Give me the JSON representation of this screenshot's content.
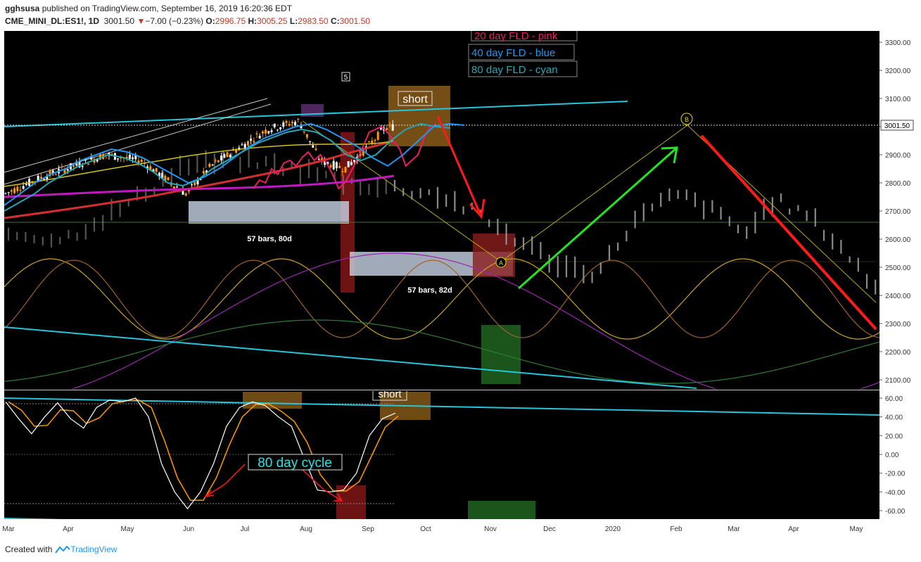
{
  "header": {
    "author": "gghsusa",
    "published": "published on TradingView.com, September 16, 2019 16:20:36 EDT",
    "symbol": "CME_MINI_DL:ES1!, 1D",
    "last": "3001.50",
    "change_arrow": "▼",
    "change": "−7.00 (−0.23%)",
    "open_label": "O:",
    "open": "2996.75",
    "high_label": "H:",
    "high": "3005.25",
    "low_label": "L:",
    "low": "2983.50",
    "close_label": "C:",
    "close": "3001.50"
  },
  "footer": {
    "created_with": "Created with",
    "brand": "TradingView"
  },
  "colors": {
    "background": "#000000",
    "candle_up": "#ffffff",
    "candle_down": "#ff9800",
    "fld20": "#e91e63",
    "fld40": "#2196f3",
    "fld80": "#26a6b5",
    "trend": "#26c6da",
    "ma_red": "#d32f2f",
    "ma_magenta": "#c218c2",
    "ma_yellow": "#d4c21a",
    "up_arrow": "#22e622",
    "down_arrow": "#ff1a1a"
  },
  "chart_data": [
    {
      "type": "line",
      "title": "",
      "x_ticks": [
        "Mar",
        "Apr",
        "May",
        "Jun",
        "Jul",
        "Aug",
        "Sep",
        "Oct",
        "Nov",
        "Dec",
        "2020",
        "Feb",
        "Mar",
        "Apr",
        "May"
      ],
      "ylim": [
        2070,
        3340
      ],
      "y_ticks": [
        "3300.00",
        "3200.00",
        "3100.00",
        "3000.00",
        "2900.00",
        "2800.00",
        "2700.00",
        "2600.00",
        "2500.00",
        "2400.00",
        "2300.00",
        "2200.00",
        "2100.00"
      ],
      "price_label": "3001.50",
      "series": [
        {
          "name": "20 day FLD - pink",
          "values": [
            2780,
            2810,
            2800,
            2850,
            2830,
            2870,
            2880,
            2860,
            2890,
            2910,
            2880,
            2900,
            2870,
            2830,
            2780,
            2800,
            2840,
            2880,
            2930,
            2980,
            2990,
            3000,
            2980,
            2950,
            2920,
            2860,
            2880,
            2900,
            2960,
            3000,
            3010
          ]
        },
        {
          "name": "40 day FLD - blue",
          "values": [
            2720,
            2760,
            2800,
            2830,
            2850,
            2880,
            2900,
            2920,
            2910,
            2890,
            2860,
            2830,
            2800,
            2820,
            2850,
            2890,
            2930,
            2960,
            2980,
            3000,
            3010,
            2990,
            2960,
            2930,
            2890,
            2860,
            2900,
            2950,
            3000,
            3010,
            3005
          ]
        },
        {
          "name": "80 day FLD - cyan",
          "values": [
            2700,
            2730,
            2760,
            2800,
            2830,
            2860,
            2880,
            2900,
            2890,
            2870,
            2840,
            2800,
            2790,
            2810,
            2850,
            2880,
            2910,
            2940,
            2960,
            2980,
            2990,
            2980,
            2950,
            2900,
            2880,
            2900,
            2950,
            2990,
            3010,
            3000,
            2995
          ]
        }
      ],
      "annotations": [
        {
          "text": "short"
        },
        {
          "text": "57 bars, 80d"
        },
        {
          "text": "57 bars, 82d"
        },
        {
          "text": "5"
        },
        {
          "text": "A"
        },
        {
          "text": "B"
        },
        {
          "text": "20 day FLD - pink"
        },
        {
          "text": "40 day FLD - blue"
        },
        {
          "text": "80 day FLD - cyan"
        }
      ],
      "grid": false
    },
    {
      "type": "line",
      "title": "",
      "ylim": [
        -68,
        68
      ],
      "y_ticks": [
        "60.00",
        "40.00",
        "20.00",
        "0.00",
        "-20.00",
        "-40.00",
        "-60.00"
      ],
      "series": [
        {
          "name": "",
          "values": [
            56,
            38,
            22,
            40,
            55,
            38,
            28,
            50,
            58,
            56,
            60,
            40,
            -10,
            -40,
            -58,
            -40,
            -10,
            30,
            50,
            56,
            52,
            40,
            30,
            -5,
            -38,
            -40,
            -38,
            -20,
            20,
            38,
            44
          ]
        }
      ],
      "annotations": [
        {
          "text": "short"
        },
        {
          "text": "80 day cycle"
        }
      ]
    }
  ]
}
